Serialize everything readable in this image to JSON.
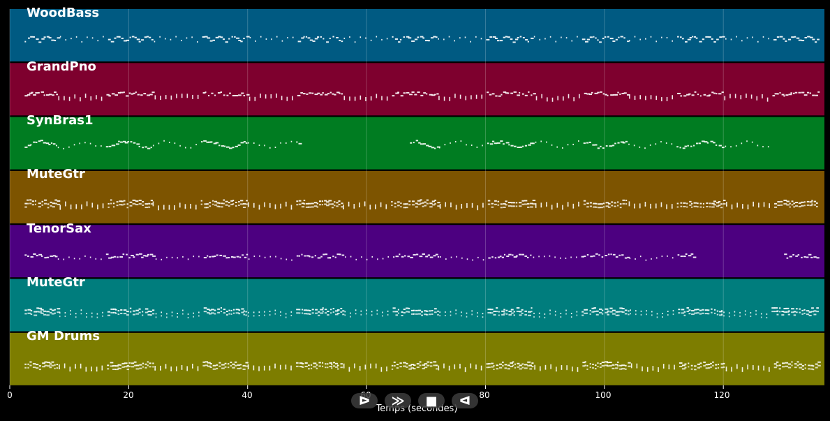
{
  "tracks": [
    {
      "name": "WoodBass",
      "color": "#005a82"
    },
    {
      "name": "GrandPno",
      "color": "#7e002e"
    },
    {
      "name": "SynBras1",
      "color": "#007c21"
    },
    {
      "name": "MuteGtr",
      "color": "#7d5400"
    },
    {
      "name": "TenorSax",
      "color": "#4c0080"
    },
    {
      "name": "MuteGtr",
      "color": "#007d7d"
    },
    {
      "name": "GM Drums",
      "color": "#7d7d00"
    }
  ],
  "axis": {
    "xlabel": "Temps (secondes)",
    "range": [
      0,
      137
    ],
    "ticks": [
      "0",
      "20",
      "40",
      "60",
      "80",
      "100",
      "120"
    ]
  },
  "controls": {
    "play_label": "ᐅ",
    "forward_label": "≫",
    "stop_label": "■",
    "back_label": "ᐊ"
  }
}
